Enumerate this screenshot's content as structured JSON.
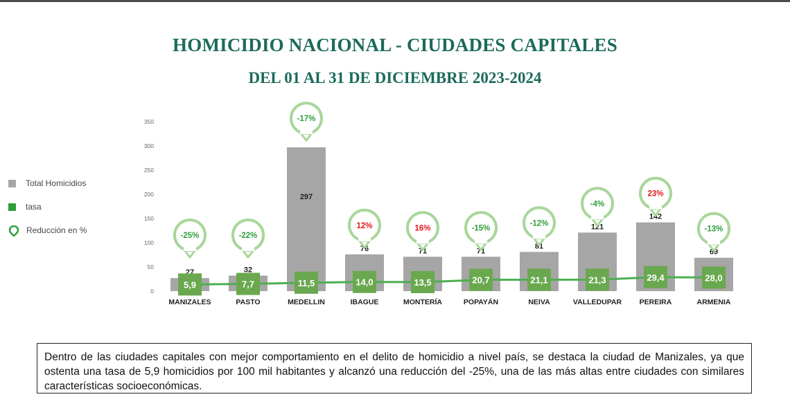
{
  "title": "HOMICIDIO NACIONAL - CIUDADES CAPITALES",
  "subtitle": "DEL 01 AL 31 DE DICIEMBRE 2023-2024",
  "legend": {
    "total": "Total Homicidios",
    "rate": "tasa",
    "reduction": "Reducción en %"
  },
  "colors": {
    "bar": "#a6a6a6",
    "rate": "#6aa84f",
    "line": "#4caf50",
    "bubble_border": "#a8d69a",
    "negative_text": "#2e9e3a",
    "positive_text": "#e0191c",
    "title": "#1b6a5a"
  },
  "chart_data": {
    "type": "bar",
    "ylim": [
      0,
      350
    ],
    "yticks": [
      "0",
      "50",
      "100",
      "150",
      "200",
      "250",
      "300",
      "350"
    ],
    "categories": [
      "MANIZALES",
      "PASTO",
      "MEDELLIN",
      "IBAGUE",
      "MONTERÍA",
      "POPAYÁN",
      "NEIVA",
      "VALLEDUPAR",
      "PEREIRA",
      "ARMENIA"
    ],
    "series": [
      {
        "name": "Total Homicidios",
        "type": "bar",
        "values": [
          27,
          32,
          297,
          76,
          71,
          71,
          81,
          121,
          142,
          69
        ]
      },
      {
        "name": "tasa",
        "type": "line",
        "values": [
          5.9,
          7.7,
          11.5,
          14.0,
          13.5,
          20.7,
          21.1,
          21.3,
          29.4,
          28.0
        ],
        "labels": [
          "5,9",
          "7,7",
          "11,5",
          "14,0",
          "13,5",
          "20,7",
          "21,1",
          "21,3",
          "29,4",
          "28,0"
        ]
      },
      {
        "name": "Reducción en %",
        "type": "annotation",
        "values": [
          -25,
          -22,
          -17,
          12,
          16,
          -15,
          -12,
          -4,
          23,
          -13
        ],
        "labels": [
          "-25%",
          "-22%",
          "-17%",
          "12%",
          "16%",
          "-15%",
          "-12%",
          "-4%",
          "23%",
          "-13%"
        ]
      }
    ]
  },
  "note": "Dentro de las ciudades capitales con mejor comportamiento en el delito de homicidio a nivel país, se destaca la ciudad de Manizales, ya que ostenta una tasa de 5,9 homicidios por 100 mil habitantes y alcanzó una reducción del -25%, una de las más altas entre ciudades con similares  características socioeconómicas."
}
